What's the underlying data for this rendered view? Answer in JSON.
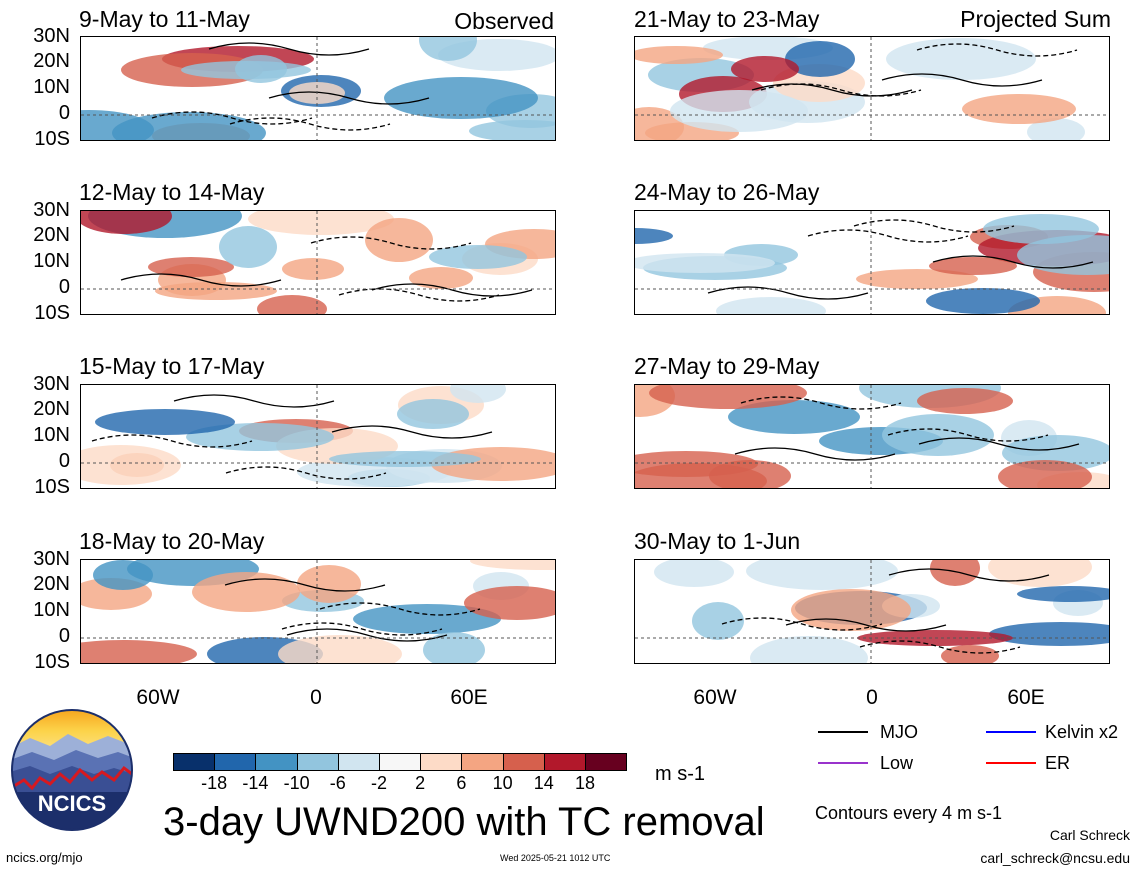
{
  "panels_left": [
    {
      "title": "9-May to 11-May",
      "tag": "Observed"
    },
    {
      "title": "12-May to 14-May",
      "tag": ""
    },
    {
      "title": "15-May to 17-May",
      "tag": ""
    },
    {
      "title": "18-May to 20-May",
      "tag": ""
    }
  ],
  "panels_right": [
    {
      "title": "21-May to 23-May",
      "tag": "Projected Sum"
    },
    {
      "title": "24-May to 26-May",
      "tag": ""
    },
    {
      "title": "27-May to 29-May",
      "tag": ""
    },
    {
      "title": "30-May to 1-Jun",
      "tag": ""
    }
  ],
  "lat_labels": [
    "30N",
    "20N",
    "10N",
    "0",
    "10S"
  ],
  "lon_labels": [
    "60W",
    "0",
    "60E"
  ],
  "colorbar": {
    "colors": [
      "#08306b",
      "#2166ac",
      "#4393c3",
      "#92c5de",
      "#d1e5f0",
      "#f7f7f7",
      "#fddbc7",
      "#f4a582",
      "#d6604d",
      "#b2182b",
      "#67001f"
    ],
    "labels": [
      "-18",
      "-14",
      "-10",
      "-6",
      "-2",
      "2",
      "6",
      "10",
      "14",
      "18"
    ],
    "units": "m s-1"
  },
  "legend": {
    "items": [
      {
        "label": "MJO",
        "color": "#000000"
      },
      {
        "label": "Kelvin x2",
        "color": "#0000ff"
      },
      {
        "label": "Low",
        "color": "#9933cc"
      },
      {
        "label": "ER",
        "color": "#ff0000"
      }
    ],
    "contours_note": "Contours every 4 m s-1"
  },
  "logo_text": "NCICS",
  "main_title": "3-day UWND200 with TC removal",
  "footer": {
    "url": "ncics.org/mjo",
    "timestamp": "Wed 2025-05-21 1012 UTC",
    "author": "Carl Schreck",
    "email": "carl_schreck@ncsu.edu"
  }
}
